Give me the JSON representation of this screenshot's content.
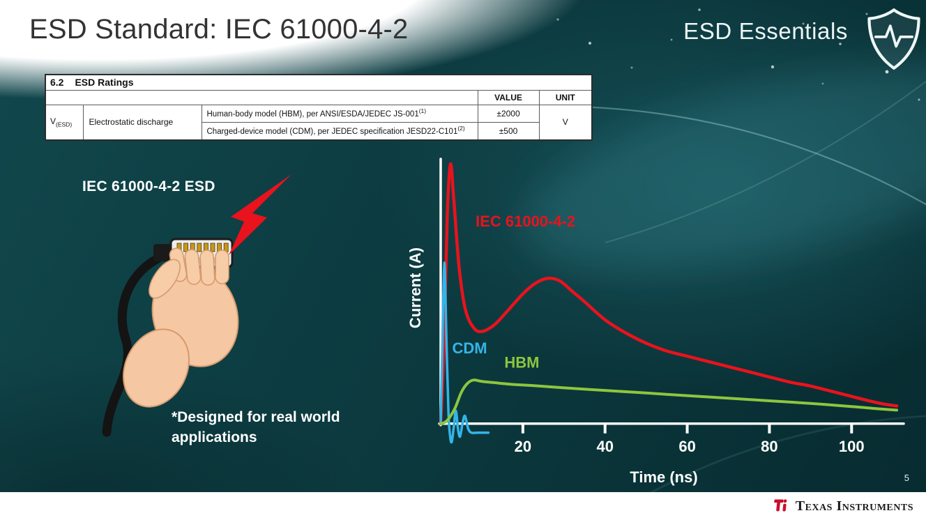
{
  "slide": {
    "title": "ESD Standard: IEC 61000-4-2",
    "series_brand": "ESD Essentials",
    "page_number": "5",
    "footer_brand": "Texas Instruments"
  },
  "colors": {
    "background_teal": "#0c3b40",
    "accent_red": "#e8131d",
    "cdm_blue": "#35b4e8",
    "hbm_green": "#8dc63f",
    "footer_bg": "#ffffff"
  },
  "icons": {
    "brand_shield": "shield-with-heartbeat",
    "strike": "lightning-bolt",
    "footer_logo": "ti-red-logo"
  },
  "ratings_table": {
    "section_number": "6.2",
    "section_title": "ESD Ratings",
    "value_header": "VALUE",
    "unit_header": "UNIT",
    "symbol": "V",
    "symbol_sub": "(ESD)",
    "parameter": "Electrostatic discharge",
    "rows": [
      {
        "description": "Human-body model (HBM), per ANSI/ESDA/JEDEC JS-001",
        "footnote": "(1)",
        "value": "±2000"
      },
      {
        "description": "Charged-device model (CDM), per JEDEC specification JESD22-C101",
        "footnote": "(2)",
        "value": "±500"
      }
    ],
    "unit": "V"
  },
  "illustration": {
    "caption": "IEC 61000-4-2 ESD",
    "note": "*Designed for real world applications"
  },
  "chart_data": {
    "type": "line",
    "title": "",
    "xlabel": "Time (ns)",
    "ylabel": "Current (A)",
    "xlim": [
      0,
      112
    ],
    "ylim": [
      -0.1,
      1.02
    ],
    "xticks": [
      20,
      40,
      60,
      80,
      100
    ],
    "grid": false,
    "note": "y-axis has no numeric ticks; values are relative current amplitude",
    "series": [
      {
        "name": "IEC 61000-4-2",
        "color": "#e8131d",
        "label_pos": {
          "x": 8.5,
          "y": 0.76
        },
        "points": [
          [
            0,
            0
          ],
          [
            0.8,
            0.3
          ],
          [
            1.6,
            0.8
          ],
          [
            2.4,
            1.0
          ],
          [
            3.2,
            0.86
          ],
          [
            4.5,
            0.6
          ],
          [
            6,
            0.44
          ],
          [
            8,
            0.37
          ],
          [
            10,
            0.355
          ],
          [
            13,
            0.38
          ],
          [
            16,
            0.43
          ],
          [
            20,
            0.5
          ],
          [
            23,
            0.54
          ],
          [
            26,
            0.56
          ],
          [
            29,
            0.55
          ],
          [
            32,
            0.51
          ],
          [
            35,
            0.47
          ],
          [
            40,
            0.4
          ],
          [
            45,
            0.35
          ],
          [
            50,
            0.31
          ],
          [
            55,
            0.28
          ],
          [
            60,
            0.26
          ],
          [
            65,
            0.24
          ],
          [
            70,
            0.22
          ],
          [
            75,
            0.2
          ],
          [
            80,
            0.18
          ],
          [
            85,
            0.16
          ],
          [
            90,
            0.145
          ],
          [
            95,
            0.125
          ],
          [
            100,
            0.105
          ],
          [
            105,
            0.085
          ],
          [
            108,
            0.075
          ],
          [
            111,
            0.068
          ]
        ]
      },
      {
        "name": "CDM",
        "color": "#35b4e8",
        "label_pos": {
          "x": 2.8,
          "y": 0.27
        },
        "points": [
          [
            0,
            0
          ],
          [
            0.4,
            0.3
          ],
          [
            0.9,
            0.62
          ],
          [
            1.4,
            0.32
          ],
          [
            1.9,
            0.04
          ],
          [
            2.3,
            -0.05
          ],
          [
            2.7,
            -0.07
          ],
          [
            3.2,
            -0.01
          ],
          [
            3.7,
            0.05
          ],
          [
            4.2,
            -0.02
          ],
          [
            4.7,
            -0.05
          ],
          [
            5.3,
            0.0
          ],
          [
            5.9,
            0.03
          ],
          [
            6.7,
            -0.02
          ],
          [
            7.5,
            -0.035
          ],
          [
            8.8,
            -0.035
          ],
          [
            10.2,
            -0.035
          ],
          [
            11.6,
            -0.035
          ]
        ]
      },
      {
        "name": "HBM",
        "color": "#8dc63f",
        "label_pos": {
          "x": 15.5,
          "y": 0.215
        },
        "points": [
          [
            0,
            0
          ],
          [
            1,
            0.005
          ],
          [
            2,
            0.02
          ],
          [
            3.5,
            0.06
          ],
          [
            5,
            0.12
          ],
          [
            6.5,
            0.155
          ],
          [
            8,
            0.168
          ],
          [
            10,
            0.163
          ],
          [
            13,
            0.158
          ],
          [
            17,
            0.152
          ],
          [
            22,
            0.147
          ],
          [
            30,
            0.138
          ],
          [
            40,
            0.128
          ],
          [
            50,
            0.118
          ],
          [
            60,
            0.108
          ],
          [
            70,
            0.098
          ],
          [
            80,
            0.088
          ],
          [
            90,
            0.078
          ],
          [
            100,
            0.066
          ],
          [
            106,
            0.058
          ],
          [
            111,
            0.052
          ]
        ]
      }
    ]
  }
}
